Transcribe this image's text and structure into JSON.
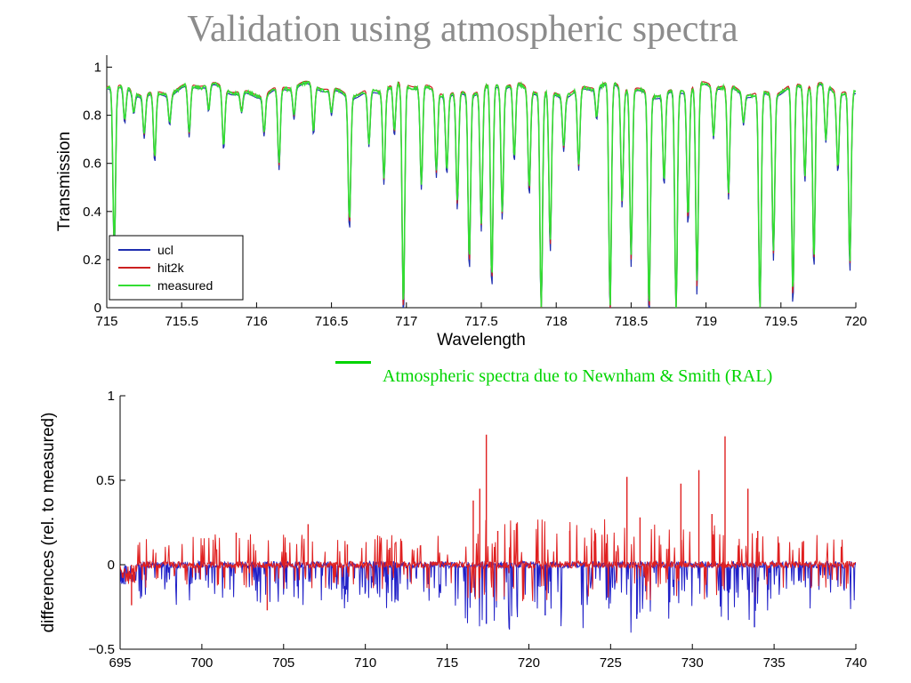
{
  "page_title": "Validation using atmospheric spectra",
  "annotation": "Atmospheric spectra due to Newnham & Smith (RAL)",
  "colors": {
    "title": "#8c8c8c",
    "credit": "#00d400",
    "ucl": "#1f2fb0",
    "hit2k": "#cc2020",
    "measured": "#33dd33"
  },
  "chart_data": [
    {
      "type": "line",
      "xlabel": "Wavelength",
      "ylabel": "Transmission",
      "xlim": [
        715,
        720
      ],
      "ylim": [
        0,
        1.05
      ],
      "xticks": [
        "715",
        "715.5",
        "716",
        "716.5",
        "717",
        "717.5",
        "718",
        "718.5",
        "719",
        "719.5",
        "720"
      ],
      "yticks": [
        "0",
        "0.2",
        "0.4",
        "0.6",
        "0.8",
        "1"
      ],
      "legend": {
        "position": "bottom-left",
        "entries": [
          "ucl",
          "hit2k",
          "measured"
        ]
      },
      "grid": false,
      "baseline": 0.92,
      "absorption_lines": [
        {
          "x": 715.05,
          "min": 0.25
        },
        {
          "x": 715.12,
          "min": 0.78
        },
        {
          "x": 715.18,
          "min": 0.84
        },
        {
          "x": 715.25,
          "min": 0.75
        },
        {
          "x": 715.32,
          "min": 0.64
        },
        {
          "x": 715.42,
          "min": 0.8
        },
        {
          "x": 715.55,
          "min": 0.72
        },
        {
          "x": 715.68,
          "min": 0.82
        },
        {
          "x": 715.78,
          "min": 0.68
        },
        {
          "x": 715.9,
          "min": 0.84
        },
        {
          "x": 716.05,
          "min": 0.76
        },
        {
          "x": 716.15,
          "min": 0.6
        },
        {
          "x": 716.25,
          "min": 0.8
        },
        {
          "x": 716.38,
          "min": 0.73
        },
        {
          "x": 716.5,
          "min": 0.82
        },
        {
          "x": 716.62,
          "min": 0.37
        },
        {
          "x": 716.75,
          "min": 0.7
        },
        {
          "x": 716.85,
          "min": 0.55
        },
        {
          "x": 716.92,
          "min": 0.72
        },
        {
          "x": 716.98,
          "min": 0.0
        },
        {
          "x": 717.1,
          "min": 0.52
        },
        {
          "x": 717.2,
          "min": 0.58
        },
        {
          "x": 717.27,
          "min": 0.6
        },
        {
          "x": 717.34,
          "min": 0.45
        },
        {
          "x": 717.42,
          "min": 0.2
        },
        {
          "x": 717.5,
          "min": 0.36
        },
        {
          "x": 717.57,
          "min": 0.12
        },
        {
          "x": 717.64,
          "min": 0.4
        },
        {
          "x": 717.72,
          "min": 0.62
        },
        {
          "x": 717.82,
          "min": 0.5
        },
        {
          "x": 717.9,
          "min": 0.0
        },
        {
          "x": 717.96,
          "min": 0.28
        },
        {
          "x": 718.05,
          "min": 0.7
        },
        {
          "x": 718.15,
          "min": 0.6
        },
        {
          "x": 718.27,
          "min": 0.8
        },
        {
          "x": 718.36,
          "min": 0.0
        },
        {
          "x": 718.44,
          "min": 0.45
        },
        {
          "x": 718.5,
          "min": 0.22
        },
        {
          "x": 718.62,
          "min": 0.0
        },
        {
          "x": 718.72,
          "min": 0.55
        },
        {
          "x": 718.8,
          "min": 0.0
        },
        {
          "x": 718.88,
          "min": 0.38
        },
        {
          "x": 718.94,
          "min": 0.1
        },
        {
          "x": 719.05,
          "min": 0.72
        },
        {
          "x": 719.15,
          "min": 0.48
        },
        {
          "x": 719.25,
          "min": 0.8
        },
        {
          "x": 719.36,
          "min": 0.0
        },
        {
          "x": 719.45,
          "min": 0.25
        },
        {
          "x": 719.58,
          "min": 0.05
        },
        {
          "x": 719.66,
          "min": 0.55
        },
        {
          "x": 719.72,
          "min": 0.2
        },
        {
          "x": 719.8,
          "min": 0.7
        },
        {
          "x": 719.88,
          "min": 0.6
        },
        {
          "x": 719.96,
          "min": 0.2
        }
      ],
      "series": [
        {
          "name": "ucl",
          "color": "#1f2fb0"
        },
        {
          "name": "hit2k",
          "color": "#cc2020"
        },
        {
          "name": "measured",
          "color": "#33dd33"
        }
      ]
    },
    {
      "type": "line",
      "xlabel": "",
      "ylabel": "differences (rel. to measured)",
      "xlim": [
        695,
        740
      ],
      "ylim": [
        -0.5,
        1
      ],
      "xticks": [
        "695",
        "700",
        "705",
        "710",
        "715",
        "720",
        "725",
        "730",
        "735",
        "740"
      ],
      "yticks": [
        "−0.5",
        "0",
        "0.5",
        "1"
      ],
      "grid": false,
      "series": [
        {
          "name": "ucl",
          "color": "#2020c8"
        },
        {
          "name": "hit2k",
          "color": "#e02020"
        }
      ],
      "spikes": [
        {
          "x": 717.4,
          "y": 0.77
        },
        {
          "x": 717.0,
          "y": 0.45
        },
        {
          "x": 716.6,
          "y": 0.38
        },
        {
          "x": 718.1,
          "y": 0.2
        },
        {
          "x": 726.0,
          "y": 0.52
        },
        {
          "x": 726.8,
          "y": 0.28
        },
        {
          "x": 729.3,
          "y": 0.48
        },
        {
          "x": 730.4,
          "y": 0.56
        },
        {
          "x": 731.2,
          "y": 0.3
        },
        {
          "x": 732.0,
          "y": 0.76
        },
        {
          "x": 733.4,
          "y": 0.45
        },
        {
          "x": 734.0,
          "y": 0.2
        },
        {
          "x": 702.1,
          "y": 0.19
        },
        {
          "x": 706.5,
          "y": 0.24
        },
        {
          "x": 708.9,
          "y": 0.12
        },
        {
          "x": 711.5,
          "y": 0.1
        },
        {
          "x": 722.5,
          "y": 0.2
        },
        {
          "x": 724.0,
          "y": 0.14
        },
        {
          "x": 736.8,
          "y": 0.14
        },
        {
          "x": 717.4,
          "y": -0.35
        },
        {
          "x": 721.0,
          "y": -0.3
        },
        {
          "x": 726.6,
          "y": -0.32
        },
        {
          "x": 733.8,
          "y": -0.37
        },
        {
          "x": 704.0,
          "y": -0.27
        },
        {
          "x": 695.7,
          "y": -0.24
        }
      ]
    }
  ]
}
